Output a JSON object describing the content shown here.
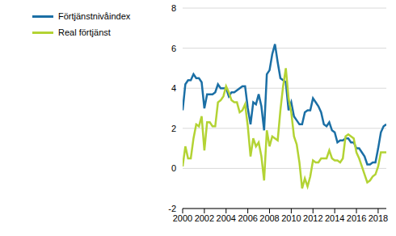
{
  "chart_data": {
    "type": "line",
    "x": [
      2000,
      2000.25,
      2000.5,
      2000.75,
      2001,
      2001.25,
      2001.5,
      2001.75,
      2002,
      2002.25,
      2002.5,
      2002.75,
      2003,
      2003.25,
      2003.5,
      2003.75,
      2004,
      2004.25,
      2004.5,
      2004.75,
      2005,
      2005.25,
      2005.5,
      2005.75,
      2006,
      2006.25,
      2006.5,
      2006.75,
      2007,
      2007.25,
      2007.5,
      2007.75,
      2008,
      2008.25,
      2008.5,
      2008.75,
      2009,
      2009.25,
      2009.5,
      2009.75,
      2010,
      2010.25,
      2010.5,
      2010.75,
      2011,
      2011.25,
      2011.5,
      2011.75,
      2012,
      2012.25,
      2012.5,
      2012.75,
      2013,
      2013.25,
      2013.5,
      2013.75,
      2014,
      2014.25,
      2014.5,
      2014.75,
      2015,
      2015.25,
      2015.5,
      2015.75,
      2016,
      2016.25,
      2016.5,
      2016.75,
      2017,
      2017.25,
      2017.5,
      2017.75,
      2018,
      2018.25,
      2018.5,
      2018.75
    ],
    "series": [
      {
        "name": "Förtjänstnivåindex",
        "color": "#1b6fa5",
        "values": [
          2.9,
          4.2,
          4.4,
          4.4,
          4.7,
          4.5,
          4.5,
          4.3,
          3.0,
          3.7,
          3.7,
          3.7,
          3.8,
          4.2,
          4.0,
          4.0,
          4.0,
          3.6,
          3.8,
          3.8,
          3.9,
          4.0,
          4.1,
          4.1,
          3.0,
          2.2,
          3.3,
          3.2,
          3.7,
          3.1,
          1.9,
          4.7,
          4.9,
          5.7,
          6.2,
          5.3,
          4.5,
          4.4,
          4.3,
          2.9,
          3.3,
          2.6,
          2.4,
          2.2,
          2.2,
          2.8,
          2.9,
          2.9,
          3.5,
          3.3,
          3.1,
          2.8,
          2.2,
          2.1,
          2.3,
          1.9,
          1.8,
          1.3,
          1.4,
          1.4,
          1.5,
          1.5,
          1.3,
          1.3,
          1.0,
          1.0,
          0.8,
          0.6,
          0.2,
          0.2,
          0.3,
          0.3,
          1.0,
          1.8,
          2.1,
          2.2
        ]
      },
      {
        "name": "Real förtjänst",
        "color": "#b3d334",
        "values": [
          0.1,
          1.1,
          0.5,
          0.5,
          1.5,
          2.2,
          2.1,
          2.6,
          0.9,
          2.3,
          2.3,
          2.1,
          2.1,
          3.3,
          3.4,
          3.6,
          4.1,
          3.8,
          3.4,
          3.3,
          3.3,
          2.8,
          2.9,
          3.2,
          2.1,
          0.6,
          1.5,
          1.1,
          1.3,
          0.6,
          -0.6,
          1.9,
          1.1,
          1.6,
          1.5,
          1.4,
          2.9,
          4.1,
          5.0,
          3.5,
          2.8,
          1.6,
          1.2,
          0.3,
          -1.0,
          -0.5,
          -0.9,
          -0.4,
          0.4,
          0.3,
          0.3,
          0.5,
          0.5,
          0.5,
          0.9,
          0.5,
          0.4,
          0.4,
          0.3,
          0.5,
          1.6,
          1.7,
          1.6,
          1.5,
          0.8,
          0.5,
          0.1,
          -0.3,
          -0.7,
          -0.6,
          -0.4,
          -0.3,
          0.1,
          0.8,
          0.8,
          0.8
        ]
      }
    ],
    "xlim": [
      2000,
      2018.75
    ],
    "xticks": [
      2000,
      2002,
      2004,
      2006,
      2008,
      2010,
      2012,
      2014,
      2016,
      2018
    ],
    "ylim": [
      -2,
      8
    ],
    "yticks": [
      -2,
      0,
      2,
      4,
      6,
      8
    ],
    "grid": true,
    "legend": "upper left"
  }
}
